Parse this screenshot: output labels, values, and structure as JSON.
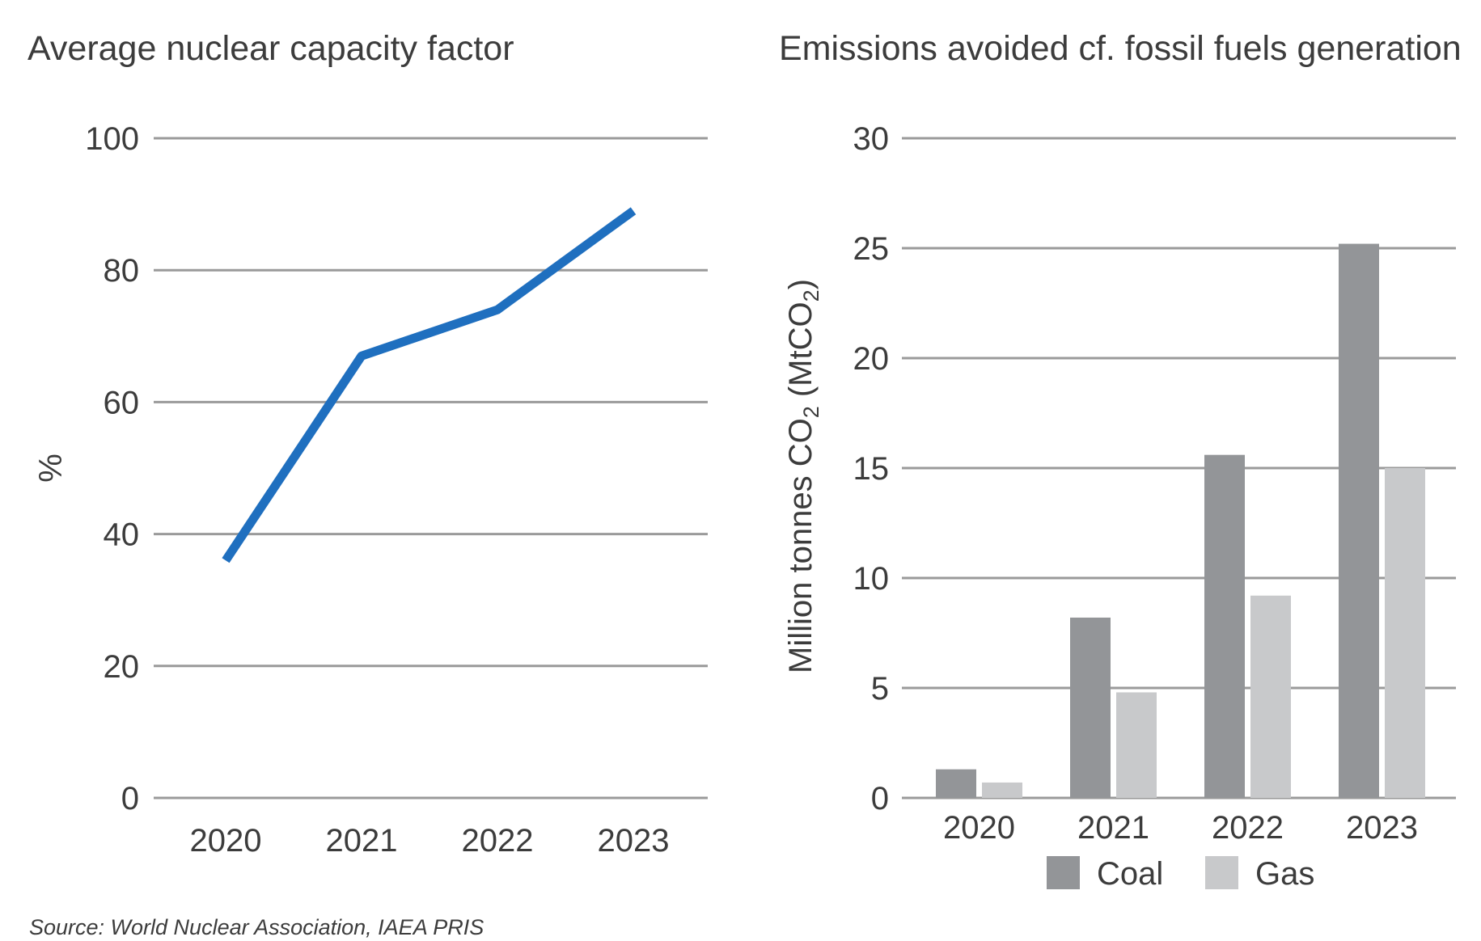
{
  "chart_data": [
    {
      "type": "line",
      "title": "Average nuclear capacity factor",
      "ylabel": "%",
      "xlabel": "",
      "categories": [
        "2020",
        "2021",
        "2022",
        "2023"
      ],
      "series": [
        {
          "values": [
            36,
            67,
            74,
            89
          ],
          "color": "#1f6fbf"
        }
      ],
      "ylim": [
        0,
        100
      ],
      "yticks": [
        0,
        20,
        40,
        60,
        80,
        100
      ],
      "grid": true
    },
    {
      "type": "bar",
      "title": "Emissions avoided cf. fossil fuels generation",
      "ylabel": "Million tonnes CO₂ (MtCO₂)",
      "ylabel_parts": [
        "Million tonnes CO",
        "2",
        " (MtCO",
        "2",
        ")"
      ],
      "xlabel": "",
      "categories": [
        "2020",
        "2021",
        "2022",
        "2023"
      ],
      "series": [
        {
          "name": "Coal",
          "values": [
            1.3,
            8.2,
            15.6,
            25.2
          ],
          "color": "#939598"
        },
        {
          "name": "Gas",
          "values": [
            0.7,
            4.8,
            9.2,
            15.0
          ],
          "color": "#c8c9cb"
        }
      ],
      "ylim": [
        0,
        30
      ],
      "yticks": [
        0,
        5,
        10,
        15,
        20,
        25,
        30
      ],
      "grid": true,
      "legend": "bottom"
    }
  ],
  "source": "Source: World Nuclear Association, IAEA PRIS"
}
